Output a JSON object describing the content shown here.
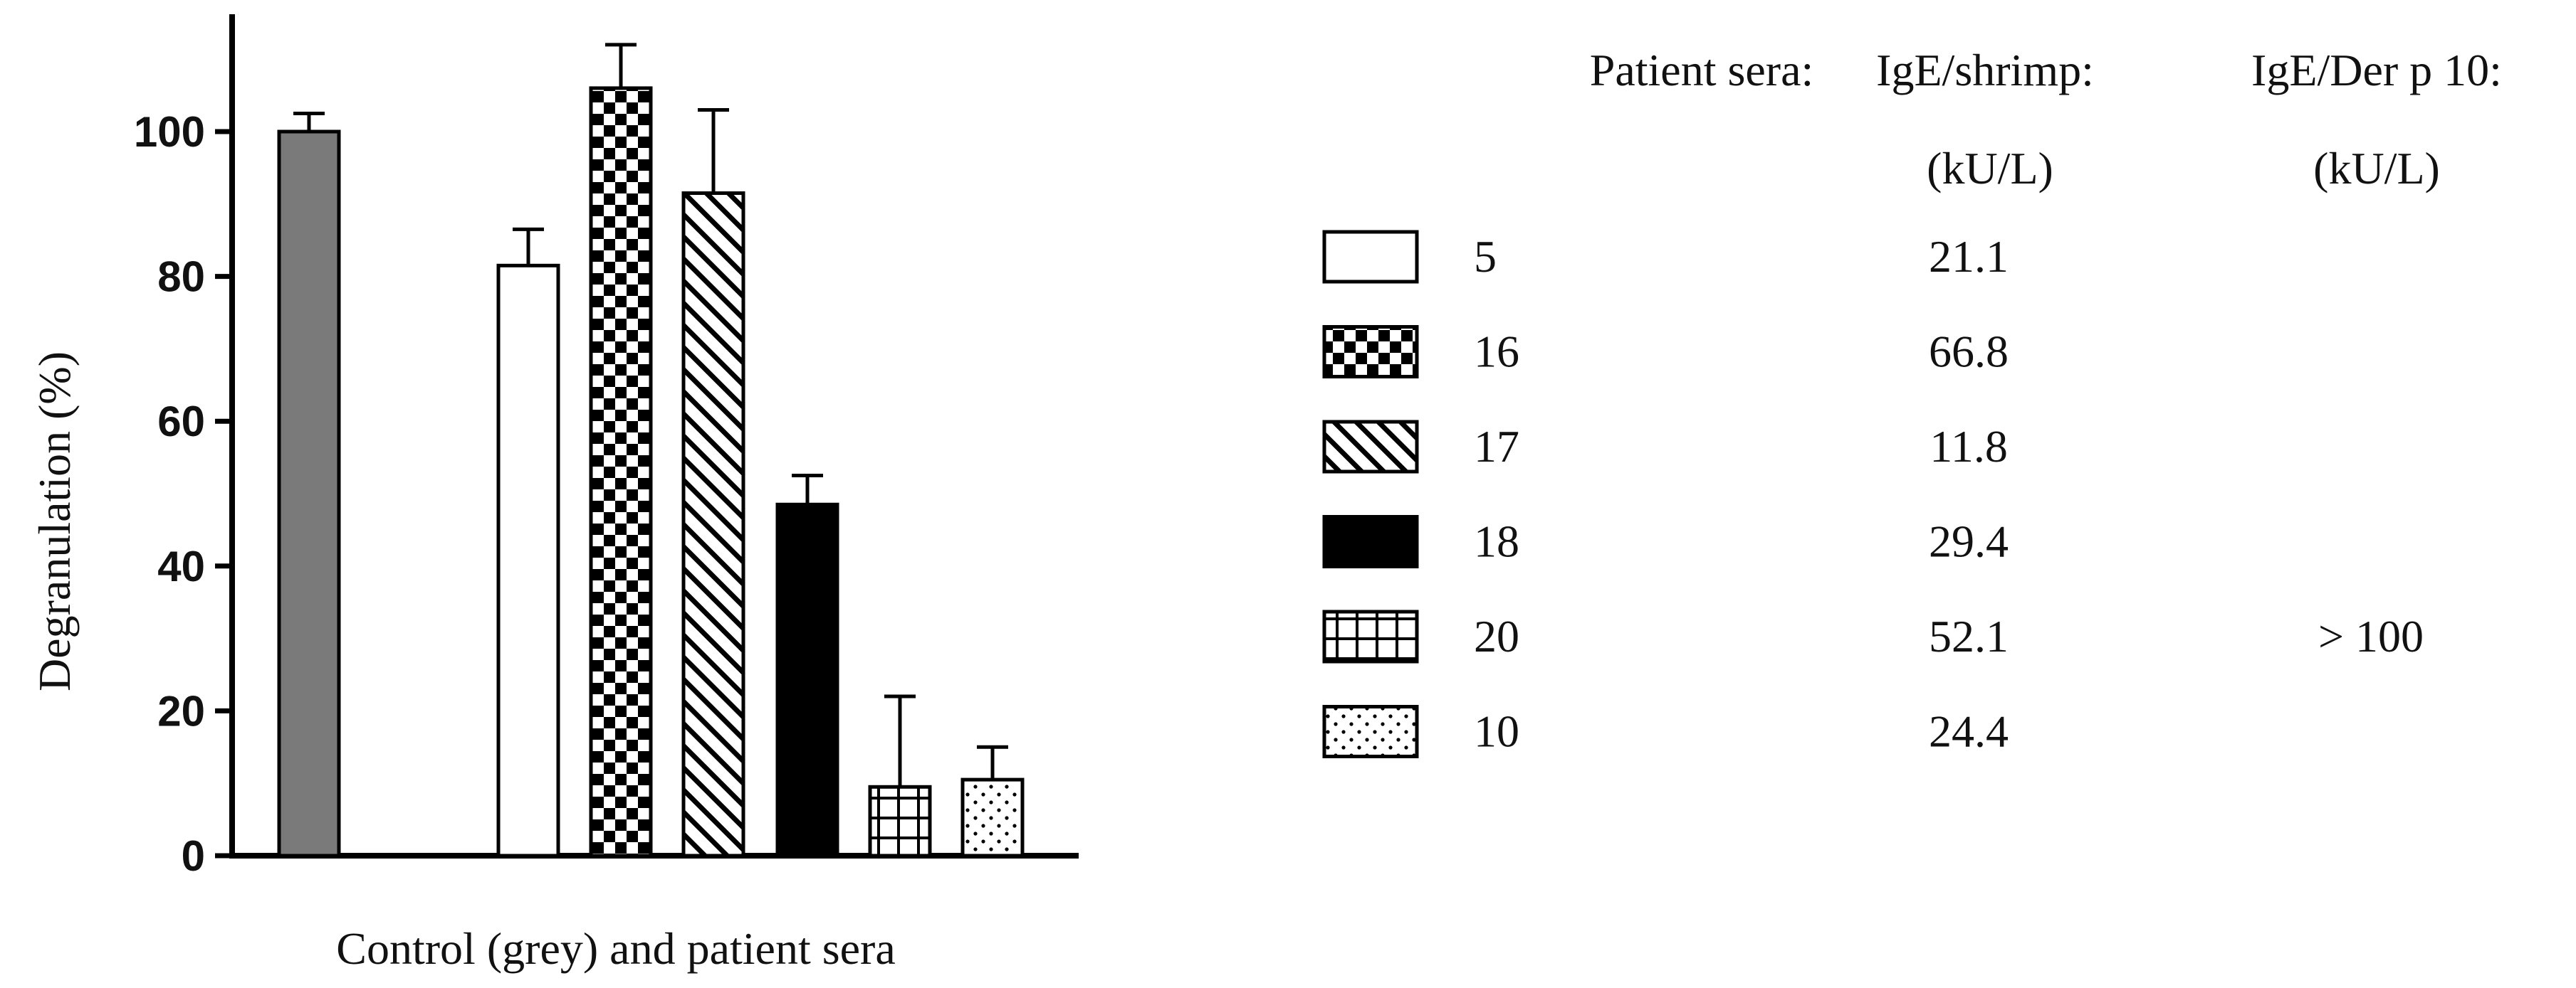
{
  "chart_data": {
    "type": "bar",
    "ylabel": "Degranulation (%)",
    "xlabel": "Control (grey) and patient sera",
    "ylim": [
      0,
      115
    ],
    "yticks": [
      0,
      20,
      40,
      60,
      80,
      100
    ],
    "grid": false,
    "bars": [
      {
        "group": "control",
        "label": "",
        "value": 100,
        "error": 2.5,
        "pattern": "grey",
        "color": "#7a7a7a"
      },
      {
        "group": "patient",
        "label": "5",
        "value": 81.5,
        "error": 5,
        "pattern": "open",
        "color": "#ffffff"
      },
      {
        "group": "patient",
        "label": "16",
        "value": 106,
        "error": 6,
        "pattern": "checker",
        "color": "#000000"
      },
      {
        "group": "patient",
        "label": "17",
        "value": 91.5,
        "error": 11.5,
        "pattern": "diagonal",
        "color": "#000000"
      },
      {
        "group": "patient",
        "label": "18",
        "value": 48.5,
        "error": 4,
        "pattern": "solid",
        "color": "#000000"
      },
      {
        "group": "patient",
        "label": "20",
        "value": 9.5,
        "error": 12.5,
        "pattern": "grid",
        "color": "#000000"
      },
      {
        "group": "patient",
        "label": "10",
        "value": 10.5,
        "error": 4.5,
        "pattern": "dots",
        "color": "#000000"
      }
    ]
  },
  "table": {
    "headers": [
      "Patient sera:",
      "IgE/shrimp:",
      "IgE/Der p 10:"
    ],
    "units": [
      "",
      "(kU/L)",
      "(kU/L)"
    ],
    "rows": [
      {
        "serum": "5",
        "shrimp": "21.1",
        "derp10": "",
        "pattern": "open"
      },
      {
        "serum": "16",
        "shrimp": "66.8",
        "derp10": "",
        "pattern": "checker"
      },
      {
        "serum": "17",
        "shrimp": "11.8",
        "derp10": "",
        "pattern": "diagonal"
      },
      {
        "serum": "18",
        "shrimp": "29.4",
        "derp10": "",
        "pattern": "solid"
      },
      {
        "serum": "20",
        "shrimp": "52.1",
        "derp10": "> 100",
        "pattern": "grid"
      },
      {
        "serum": "10",
        "shrimp": "24.4",
        "derp10": "",
        "pattern": "dots"
      }
    ]
  }
}
